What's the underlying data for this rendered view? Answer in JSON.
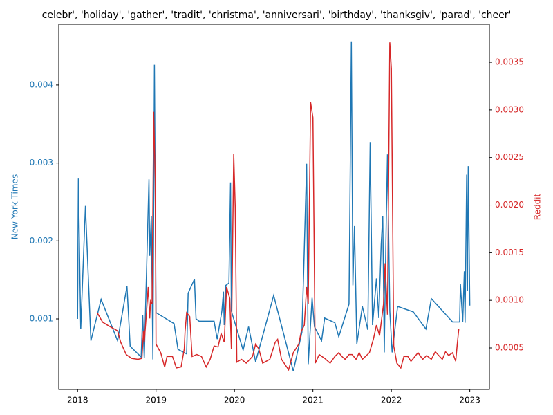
{
  "chart_data": {
    "type": "line",
    "title": "celebr', 'holiday', 'gather', 'tradit', 'christma', 'anniversari', 'birthday', 'thanksgiv', 'parad', 'cheer'",
    "ylabel": "New York Times",
    "y2label": "Reddit",
    "xlim": [
      2017.76,
      2023.25
    ],
    "xticks": [
      2018,
      2019,
      2020,
      2021,
      2022,
      2023
    ],
    "ylim": [
      9.5e-05,
      0.00478
    ],
    "yticks": [
      0.001,
      0.002,
      0.003,
      0.004
    ],
    "y2lim": [
      6.4e-05,
      0.0039
    ],
    "y2ticks": [
      0.0005,
      {
        "value": 0.001,
        "label": "0.0010"
      },
      0.0015,
      {
        "value": 0.002,
        "label": "0.0020"
      },
      0.0025,
      {
        "value": 0.003,
        "label": "0.0030"
      },
      0.0035
    ],
    "series": [
      {
        "name": "New York Times",
        "color": "#1f77b4",
        "x": [
          2018.0,
          2018.01,
          2018.04,
          2018.1,
          2018.17,
          2018.3,
          2018.51,
          2018.63,
          2018.67,
          2018.81,
          2018.83,
          2018.85,
          2018.91,
          2018.92,
          2018.94,
          2018.96,
          2018.98,
          2019.0,
          2019.23,
          2019.28,
          2019.39,
          2019.41,
          2019.49,
          2019.51,
          2019.55,
          2019.74,
          2019.78,
          2019.84,
          2019.86,
          2019.87,
          2019.89,
          2019.93,
          2019.95,
          2019.96,
          2020.11,
          2020.18,
          2020.27,
          2020.5,
          2020.75,
          2020.86,
          2020.88,
          2020.92,
          2020.94,
          2020.99,
          2021.02,
          2021.11,
          2021.15,
          2021.28,
          2021.33,
          2021.46,
          2021.49,
          2021.51,
          2021.53,
          2021.56,
          2021.63,
          2021.7,
          2021.73,
          2021.76,
          2021.81,
          2021.84,
          2021.87,
          2021.89,
          2021.91,
          2021.93,
          2021.95,
          2021.98,
          2022.01,
          2022.08,
          2022.28,
          2022.44,
          2022.51,
          2022.78,
          2022.87,
          2022.88,
          2022.91,
          2022.93,
          2022.94,
          2022.96,
          2022.97,
          2022.98,
          2023.0
        ],
        "values": [
          0.001,
          0.0028,
          0.00087,
          0.00245,
          0.00072,
          0.00125,
          0.00072,
          0.00142,
          0.00065,
          0.00051,
          0.00105,
          0.0005,
          0.00279,
          0.00181,
          0.00232,
          0.00048,
          0.00426,
          0.00108,
          0.00094,
          0.00061,
          0.00055,
          0.00133,
          0.00151,
          0.001,
          0.00097,
          0.00097,
          0.00074,
          0.0011,
          0.00135,
          0.00092,
          0.00143,
          0.00146,
          0.00275,
          0.0011,
          0.0006,
          0.0009,
          0.00045,
          0.0013,
          0.00033,
          0.00083,
          0.00154,
          0.00299,
          0.00042,
          0.00127,
          0.0009,
          0.00072,
          0.00101,
          0.00095,
          0.00077,
          0.00119,
          0.00456,
          0.00143,
          0.00219,
          0.00068,
          0.00116,
          0.00086,
          0.00326,
          0.00092,
          0.00152,
          0.00101,
          0.00195,
          0.00232,
          0.00057,
          0.00196,
          0.00311,
          0.0011,
          0.00057,
          0.00116,
          0.00109,
          0.00087,
          0.00126,
          0.00096,
          0.00096,
          0.00145,
          0.00096,
          0.00161,
          0.00095,
          0.00285,
          0.00136,
          0.00296,
          0.00117
        ]
      },
      {
        "name": "Reddit",
        "color": "#d62728",
        "axis": "y2",
        "x": [
          2018.25,
          2018.32,
          2018.4,
          2018.51,
          2018.55,
          2018.62,
          2018.69,
          2018.77,
          2018.82,
          2018.84,
          2018.85,
          2018.88,
          2018.9,
          2018.92,
          2018.93,
          2018.95,
          2018.97,
          2018.99,
          2019.0,
          2019.06,
          2019.11,
          2019.14,
          2019.21,
          2019.26,
          2019.32,
          2019.36,
          2019.37,
          2019.39,
          2019.43,
          2019.46,
          2019.52,
          2019.58,
          2019.64,
          2019.69,
          2019.74,
          2019.79,
          2019.83,
          2019.87,
          2019.9,
          2019.94,
          2019.96,
          2019.99,
          2020.01,
          2020.03,
          2020.09,
          2020.15,
          2020.23,
          2020.27,
          2020.31,
          2020.36,
          2020.45,
          2020.52,
          2020.55,
          2020.6,
          2020.69,
          2020.75,
          2020.82,
          2020.85,
          2020.89,
          2020.92,
          2020.94,
          2020.97,
          2021.0,
          2021.03,
          2021.08,
          2021.15,
          2021.22,
          2021.28,
          2021.33,
          2021.37,
          2021.41,
          2021.46,
          2021.5,
          2021.55,
          2021.59,
          2021.63,
          2021.72,
          2021.77,
          2021.81,
          2021.85,
          2021.9,
          2021.92,
          2021.95,
          2021.98,
          2022.0,
          2022.03,
          2022.07,
          2022.12,
          2022.16,
          2022.21,
          2022.25,
          2022.34,
          2022.4,
          2022.45,
          2022.51,
          2022.56,
          2022.65,
          2022.69,
          2022.73,
          2022.78,
          2022.82,
          2022.84,
          2022.86
        ],
        "values": [
          0.00087,
          0.00077,
          0.00073,
          0.00068,
          0.00056,
          0.00043,
          0.00039,
          0.00038,
          0.00039,
          0.00068,
          0.00056,
          0.00089,
          0.00114,
          0.00081,
          0.00099,
          0.00096,
          0.00298,
          0.00227,
          0.00054,
          0.00045,
          0.0003,
          0.00041,
          0.00041,
          0.00029,
          0.0003,
          0.00049,
          0.00067,
          0.00087,
          0.00083,
          0.00041,
          0.00043,
          0.00041,
          0.0003,
          0.00038,
          0.00052,
          0.00051,
          0.00065,
          0.00056,
          0.00114,
          0.00102,
          0.00049,
          0.00254,
          0.00198,
          0.00035,
          0.00038,
          0.00034,
          0.00041,
          0.00054,
          0.00049,
          0.00034,
          0.00038,
          0.00056,
          0.00059,
          0.00038,
          0.00027,
          0.00045,
          0.00054,
          0.00067,
          0.00074,
          0.00114,
          0.00096,
          0.00308,
          0.00292,
          0.00034,
          0.00043,
          0.00039,
          0.00034,
          0.00041,
          0.00045,
          0.00041,
          0.00038,
          0.00043,
          0.00043,
          0.00038,
          0.00045,
          0.00038,
          0.00045,
          0.00059,
          0.00074,
          0.00063,
          0.00096,
          0.00139,
          0.00085,
          0.00371,
          0.00343,
          0.00052,
          0.00034,
          0.00029,
          0.00041,
          0.00041,
          0.00036,
          0.00045,
          0.00038,
          0.00042,
          0.00038,
          0.00046,
          0.00038,
          0.00046,
          0.00042,
          0.00045,
          0.00036,
          0.00054,
          0.0007
        ]
      }
    ]
  }
}
